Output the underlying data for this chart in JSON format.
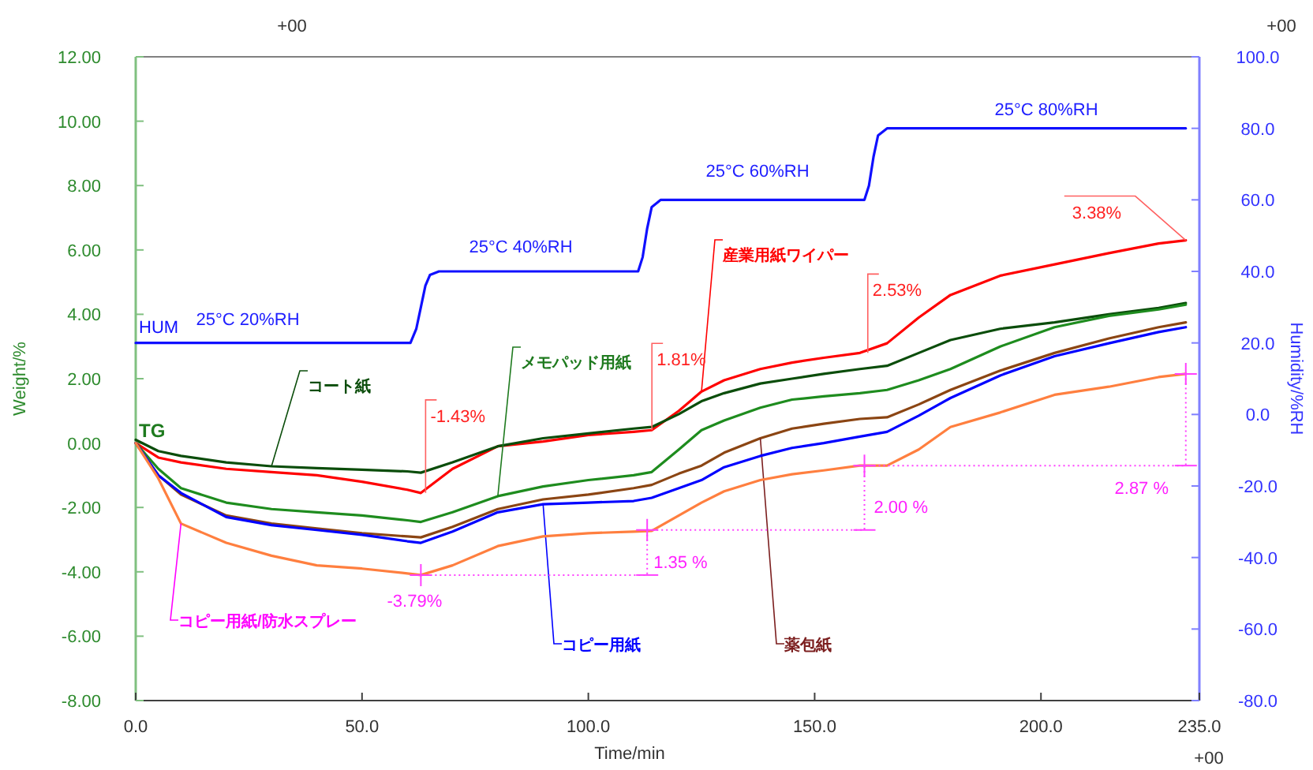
{
  "chart_data": {
    "type": "line",
    "xlabel": "Time/min",
    "ylabel": "Weight/%",
    "y2label": "Humidity/%RH",
    "xlim": [
      0,
      235
    ],
    "ylim": [
      -8,
      12
    ],
    "y2lim": [
      -80,
      100
    ],
    "xticks": [
      {
        "value": 0,
        "label": "0.0"
      },
      {
        "value": 50,
        "label": "50.0"
      },
      {
        "value": 100,
        "label": "100.0"
      },
      {
        "value": 150,
        "label": "150.0"
      },
      {
        "value": 200,
        "label": "200.0"
      },
      {
        "value": 235,
        "label": "235.0"
      }
    ],
    "yticks": [
      {
        "value": -8,
        "label": "-8.00"
      },
      {
        "value": -6,
        "label": "-6.00"
      },
      {
        "value": -4,
        "label": "-4.00"
      },
      {
        "value": -2,
        "label": "-2.00"
      },
      {
        "value": 0,
        "label": "0.00"
      },
      {
        "value": 2,
        "label": "2.00"
      },
      {
        "value": 4,
        "label": "4.00"
      },
      {
        "value": 6,
        "label": "6.00"
      },
      {
        "value": 8,
        "label": "8.00"
      },
      {
        "value": 10,
        "label": "10.00"
      },
      {
        "value": 12,
        "label": "12.00"
      }
    ],
    "y2ticks": [
      {
        "value": -80,
        "label": "-80.0"
      },
      {
        "value": -60,
        "label": "-60.0"
      },
      {
        "value": -40,
        "label": "-40.0"
      },
      {
        "value": -20,
        "label": "-20.0"
      },
      {
        "value": 0,
        "label": "0.0"
      },
      {
        "value": 20,
        "label": "20.0"
      },
      {
        "value": 40,
        "label": "40.0"
      },
      {
        "value": 60,
        "label": "60.0"
      },
      {
        "value": 80,
        "label": "80.0"
      },
      {
        "value": 100,
        "label": "100.0"
      }
    ],
    "series": [
      {
        "name": "産業用紙ワイパー",
        "color": "#ff0000",
        "x": [
          0,
          5,
          10,
          20,
          30,
          40,
          50,
          60,
          63,
          70,
          80,
          90,
          100,
          110,
          114,
          120,
          125,
          130,
          138,
          145,
          152,
          160,
          166,
          173,
          180,
          191,
          203,
          215,
          226,
          232
        ],
        "values": [
          0,
          -0.45,
          -0.6,
          -0.8,
          -0.9,
          -1.0,
          -1.2,
          -1.45,
          -1.55,
          -0.8,
          -0.1,
          0.05,
          0.25,
          0.35,
          0.4,
          1.0,
          1.6,
          1.95,
          2.3,
          2.5,
          2.65,
          2.8,
          3.1,
          3.9,
          4.6,
          5.2,
          5.55,
          5.9,
          6.2,
          6.3
        ]
      },
      {
        "name": "コート紙",
        "color": "#0b4d0b",
        "x": [
          0,
          5,
          10,
          20,
          30,
          40,
          50,
          60,
          63,
          70,
          80,
          90,
          100,
          110,
          114,
          120,
          125,
          130,
          138,
          145,
          152,
          160,
          166,
          173,
          180,
          191,
          203,
          215,
          226,
          232
        ],
        "values": [
          0.1,
          -0.25,
          -0.4,
          -0.6,
          -0.72,
          -0.78,
          -0.83,
          -0.88,
          -0.92,
          -0.6,
          -0.1,
          0.15,
          0.3,
          0.45,
          0.5,
          0.9,
          1.3,
          1.55,
          1.85,
          2.0,
          2.15,
          2.3,
          2.4,
          2.8,
          3.2,
          3.55,
          3.75,
          4.0,
          4.2,
          4.35
        ]
      },
      {
        "name": "メモパッド用紙",
        "color": "#1e8c1e",
        "x": [
          0,
          5,
          10,
          20,
          30,
          40,
          50,
          60,
          63,
          70,
          80,
          90,
          100,
          110,
          114,
          120,
          125,
          130,
          138,
          145,
          152,
          160,
          166,
          173,
          180,
          191,
          203,
          215,
          226,
          232
        ],
        "values": [
          0,
          -0.8,
          -1.4,
          -1.85,
          -2.05,
          -2.15,
          -2.25,
          -2.4,
          -2.45,
          -2.15,
          -1.65,
          -1.35,
          -1.15,
          -1.0,
          -0.9,
          -0.2,
          0.4,
          0.7,
          1.1,
          1.35,
          1.45,
          1.55,
          1.65,
          1.95,
          2.3,
          3.0,
          3.6,
          3.95,
          4.15,
          4.3
        ]
      },
      {
        "name": "薬包紙",
        "color": "#8b4513",
        "x": [
          0,
          5,
          10,
          20,
          30,
          40,
          50,
          60,
          63,
          70,
          80,
          90,
          100,
          110,
          114,
          120,
          125,
          130,
          138,
          145,
          152,
          160,
          166,
          173,
          180,
          191,
          203,
          215,
          226,
          232
        ],
        "values": [
          0,
          -1.0,
          -1.6,
          -2.25,
          -2.5,
          -2.65,
          -2.8,
          -2.9,
          -2.93,
          -2.6,
          -2.05,
          -1.75,
          -1.6,
          -1.4,
          -1.3,
          -0.95,
          -0.7,
          -0.3,
          0.15,
          0.45,
          0.6,
          0.75,
          0.8,
          1.2,
          1.65,
          2.25,
          2.8,
          3.25,
          3.6,
          3.75
        ]
      },
      {
        "name": "コピー用紙",
        "color": "#0000ff",
        "x": [
          0,
          5,
          10,
          20,
          30,
          40,
          50,
          60,
          63,
          70,
          80,
          90,
          100,
          110,
          114,
          120,
          125,
          130,
          138,
          145,
          152,
          160,
          166,
          173,
          180,
          191,
          203,
          215,
          226,
          232
        ],
        "values": [
          0,
          -1.0,
          -1.55,
          -2.3,
          -2.55,
          -2.7,
          -2.85,
          -3.05,
          -3.1,
          -2.75,
          -2.15,
          -1.9,
          -1.85,
          -1.8,
          -1.7,
          -1.4,
          -1.15,
          -0.75,
          -0.4,
          -0.15,
          0.0,
          0.2,
          0.35,
          0.85,
          1.4,
          2.1,
          2.7,
          3.1,
          3.45,
          3.6
        ]
      },
      {
        "name": "コピー用紙/防水スプレー",
        "color": "#ff7f3f",
        "x": [
          0,
          5,
          10,
          20,
          30,
          40,
          50,
          60,
          63,
          70,
          80,
          90,
          100,
          110,
          114,
          120,
          125,
          130,
          138,
          145,
          152,
          160,
          166,
          173,
          180,
          191,
          203,
          215,
          226,
          232
        ],
        "values": [
          0,
          -1.1,
          -2.5,
          -3.1,
          -3.5,
          -3.8,
          -3.9,
          -4.05,
          -4.1,
          -3.8,
          -3.2,
          -2.9,
          -2.8,
          -2.75,
          -2.73,
          -2.25,
          -1.85,
          -1.5,
          -1.15,
          -0.97,
          -0.85,
          -0.7,
          -0.7,
          -0.2,
          0.5,
          0.95,
          1.5,
          1.75,
          2.05,
          2.15
        ]
      },
      {
        "name": "HUM",
        "color": "#1010ff",
        "axis": "y2",
        "x": [
          0,
          58,
          60.7,
          62,
          63,
          64,
          65,
          67,
          110,
          111,
          112,
          113,
          114,
          116,
          160,
          161,
          162,
          163,
          164,
          166,
          232
        ],
        "values": [
          20,
          20,
          20,
          24,
          30,
          36,
          39,
          40,
          40,
          40,
          44,
          52,
          58,
          60,
          60,
          60,
          64,
          72,
          78,
          80,
          80
        ]
      }
    ],
    "annotations": [
      "+00",
      "+00",
      "+00",
      "25°C 20%RH",
      "25°C 40%RH",
      "25°C 60%RH",
      "25°C 80%RH",
      {
        "text": "TG",
        "x": 0,
        "y": 0
      },
      {
        "text": "-1.43%",
        "x": 63,
        "y": -1.55
      },
      {
        "text": "1.81%",
        "x": 113,
        "y": 0.4
      },
      {
        "text": "2.53%",
        "x": 160,
        "y": 2.8
      },
      {
        "text": "3.38%",
        "x": 232,
        "y": 6.3
      },
      {
        "text": "-3.79%",
        "x": 63,
        "y": -4.1
      },
      {
        "text": "1.35 %",
        "x": 113,
        "y": -2.7
      },
      {
        "text": "2.00 %",
        "x": 161,
        "y": -0.7
      },
      {
        "text": "2.87 %",
        "x": 232,
        "y": 2.15
      }
    ]
  }
}
